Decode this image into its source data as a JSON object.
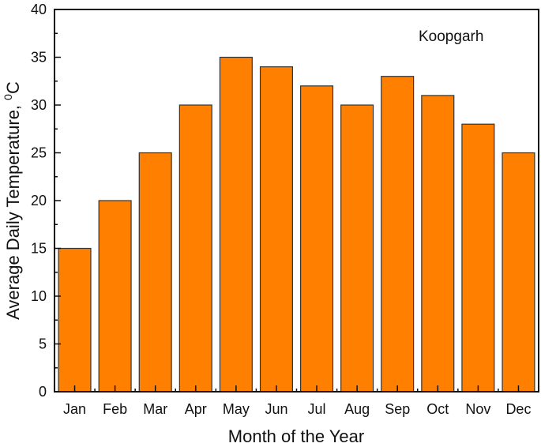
{
  "chart_data": {
    "type": "bar",
    "title": "",
    "annotation": "Koopgarh",
    "xlabel": "Month of the Year",
    "ylabel": "Average Daily Temperature, ",
    "ylabel_sup": "0",
    "ylabel_unit": "C",
    "categories": [
      "Jan",
      "Feb",
      "Mar",
      "Apr",
      "May",
      "Jun",
      "Jul",
      "Aug",
      "Sep",
      "Oct",
      "Nov",
      "Dec"
    ],
    "values": [
      15,
      20,
      25,
      30,
      35,
      34,
      32,
      30,
      33,
      31,
      28,
      25
    ],
    "ylim": [
      0,
      40
    ],
    "yticks": [
      0,
      5,
      10,
      15,
      20,
      25,
      30,
      35,
      40
    ],
    "grid": false,
    "legend": null,
    "bar_color": "#ff8000",
    "edge_color": "#333333"
  }
}
